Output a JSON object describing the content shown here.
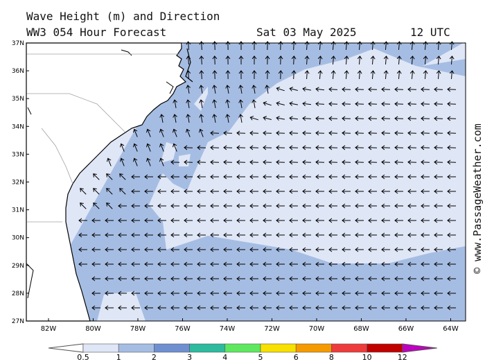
{
  "title_line1": "Wave Height (m) and Direction",
  "title_line2": "WW3 054 Hour Forecast",
  "date_label": "Sat 03 May 2025",
  "time_label": "12 UTC",
  "credit": "© www.PassageWeather.com",
  "lat_labels": [
    "37N",
    "36N",
    "35N",
    "34N",
    "33N",
    "32N",
    "31N",
    "30N",
    "29N",
    "28N",
    "27N"
  ],
  "lon_labels": [
    "82W",
    "80W",
    "78W",
    "76W",
    "74W",
    "72W",
    "70W",
    "68W",
    "66W",
    "64W"
  ],
  "legend": {
    "labels": [
      "0.5",
      "1",
      "2",
      "3",
      "4",
      "5",
      "6",
      "8",
      "10",
      "12"
    ],
    "colors": [
      "#dfe6f6",
      "#a6bde3",
      "#6f8fd0",
      "#2dba9e",
      "#5ee860",
      "#f8e000",
      "#f59a00",
      "#ee3b3b",
      "#c00000",
      "#c000c0"
    ]
  },
  "colors": {
    "land": "#ffffff",
    "sea_low": "#dfe6f6",
    "sea_mid": "#a6bde3",
    "coast": "#000000",
    "borders": "#a0a0a0"
  },
  "direction_summary": "arrows point north near the coast, west offshore"
}
